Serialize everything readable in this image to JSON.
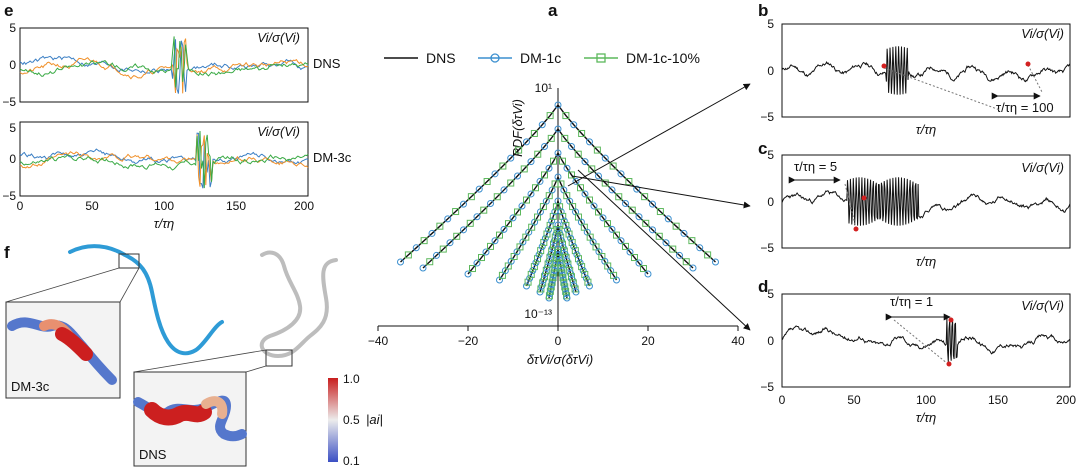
{
  "panels": {
    "a": "a",
    "b": "b",
    "c": "c",
    "d": "d",
    "e": "e",
    "f": "f"
  },
  "chart_data": [
    {
      "id": "a",
      "type": "line",
      "xlabel": "δτVi/σ(δτVi)",
      "ylabel": "PDF(δτVi)",
      "xlim": [
        -40,
        40
      ],
      "x_ticks": [
        "−40",
        "−20",
        "0",
        "20",
        "40"
      ],
      "y_annotations": [
        "10¹",
        "10⁻¹³"
      ],
      "log_y": true,
      "legend": [
        "DNS",
        "DM-1c",
        "DM-1c-10%"
      ],
      "legend_position": "top",
      "series_colors": {
        "DNS": "#111111",
        "DM-1c": "#3b8fcf",
        "DM-1c-10%": "#5cb85c"
      },
      "curves_half_width": [
        35,
        30,
        20,
        13,
        7,
        4,
        2
      ],
      "curves_peak_log10": [
        1,
        0,
        -1,
        -2,
        -3,
        -3.5,
        -4
      ],
      "peak_value": 1,
      "tail_value": 1e-13
    },
    {
      "id": "b",
      "type": "line",
      "ylabel": "Vi/σ(Vi)",
      "xlabel": "τ/τη",
      "ylim": [
        -5,
        5
      ],
      "y_ticks": [
        "5",
        "0",
        "−5"
      ],
      "annotation": "τ/τη = 100",
      "annotation_value": 100
    },
    {
      "id": "c",
      "type": "line",
      "ylabel": "Vi/σ(Vi)",
      "xlabel": "τ/τη",
      "ylim": [
        -5,
        5
      ],
      "y_ticks": [
        "5",
        "0",
        "−5"
      ],
      "annotation": "τ/τη = 5",
      "annotation_value": 5
    },
    {
      "id": "d",
      "type": "line",
      "ylabel": "Vi/σ(Vi)",
      "xlabel": "τ/τη",
      "xlim": [
        0,
        200
      ],
      "ylim": [
        -5,
        5
      ],
      "x_ticks": [
        "0",
        "50",
        "100",
        "150",
        "200"
      ],
      "y_ticks": [
        "5",
        "0",
        "−5"
      ],
      "annotation": "τ/τη = 1",
      "annotation_value": 1
    },
    {
      "id": "e",
      "type": "line",
      "ylabel": "Vi/σ(Vi)",
      "xlabel": "τ/τη",
      "xlim": [
        0,
        200
      ],
      "ylim": [
        -5,
        5
      ],
      "x_ticks": [
        "0",
        "50",
        "100",
        "150",
        "200"
      ],
      "y_ticks": [
        "5",
        "0",
        "−5"
      ],
      "subplots": [
        "DNS",
        "DM-3c"
      ],
      "series_colors": [
        "#3b7fc4",
        "#f0902a",
        "#3aaa45"
      ]
    },
    {
      "id": "f",
      "type": "other",
      "insets": [
        "DM-3c",
        "DNS"
      ],
      "colorbar": {
        "label": "|ai|",
        "ticks": [
          "1.0",
          "0.5",
          "0.1"
        ],
        "min": 0.1,
        "max": 1.0
      }
    }
  ]
}
